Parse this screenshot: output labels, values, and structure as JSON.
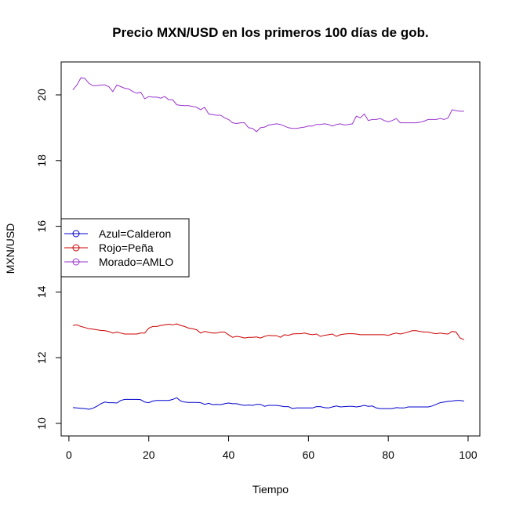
{
  "chart_data": {
    "type": "line",
    "title": "Precio MXN/USD en los primeros 100 días de gob.",
    "xlabel": "Tiempo",
    "ylabel": "MXN/USD",
    "xlim": [
      1,
      100
    ],
    "ylim": [
      10,
      20.9
    ],
    "xticks": [
      0,
      20,
      40,
      60,
      80,
      100
    ],
    "yticks": [
      10,
      12,
      14,
      16,
      18,
      20
    ],
    "xtick_labels": [
      "0",
      "20",
      "40",
      "60",
      "80",
      "100"
    ],
    "ytick_labels": [
      "10",
      "12",
      "14",
      "16",
      "18",
      "20"
    ],
    "legend_position": "left",
    "grid": false,
    "series": [
      {
        "name": "Azul=Calderon",
        "color": "#0000cc",
        "x": [
          1,
          2,
          3,
          4,
          5,
          6,
          7,
          8,
          9,
          10,
          11,
          12,
          13,
          14,
          15,
          16,
          17,
          18,
          19,
          20,
          21,
          22,
          23,
          24,
          25,
          26,
          27,
          28,
          29,
          30,
          31,
          32,
          33,
          34,
          35,
          36,
          37,
          38,
          39,
          40,
          41,
          42,
          43,
          44,
          45,
          46,
          47,
          48,
          49,
          50,
          51,
          52,
          53,
          54,
          55,
          56,
          57,
          58,
          59,
          60,
          61,
          62,
          63,
          64,
          65,
          66,
          67,
          68,
          69,
          70,
          71,
          72,
          73,
          74,
          75,
          76,
          77,
          78,
          79,
          80,
          81,
          82,
          83,
          84,
          85,
          86,
          87,
          88,
          89,
          90,
          91,
          92,
          93,
          94,
          95,
          96,
          97,
          98,
          99
        ],
        "y": [
          10.48,
          10.47,
          10.46,
          10.45,
          10.43,
          10.46,
          10.52,
          10.6,
          10.65,
          10.63,
          10.63,
          10.62,
          10.7,
          10.73,
          10.73,
          10.73,
          10.73,
          10.72,
          10.65,
          10.63,
          10.68,
          10.7,
          10.7,
          10.7,
          10.7,
          10.73,
          10.78,
          10.68,
          10.65,
          10.64,
          10.64,
          10.64,
          10.63,
          10.58,
          10.61,
          10.57,
          10.58,
          10.57,
          10.6,
          10.62,
          10.6,
          10.6,
          10.57,
          10.55,
          10.56,
          10.55,
          10.58,
          10.58,
          10.52,
          10.55,
          10.55,
          10.55,
          10.53,
          10.51,
          10.51,
          10.45,
          10.47,
          10.47,
          10.47,
          10.47,
          10.47,
          10.51,
          10.51,
          10.48,
          10.47,
          10.5,
          10.53,
          10.5,
          10.51,
          10.52,
          10.52,
          10.5,
          10.52,
          10.55,
          10.52,
          10.53,
          10.47,
          10.45,
          10.45,
          10.45,
          10.45,
          10.48,
          10.47,
          10.47,
          10.5,
          10.5,
          10.5,
          10.5,
          10.5,
          10.5,
          10.53,
          10.58,
          10.63,
          10.65,
          10.67,
          10.68,
          10.7,
          10.7,
          10.68
        ]
      },
      {
        "name": "Rojo=Peña",
        "color": "#cc0000",
        "x": [
          1,
          2,
          3,
          4,
          5,
          6,
          7,
          8,
          9,
          10,
          11,
          12,
          13,
          14,
          15,
          16,
          17,
          18,
          19,
          20,
          21,
          22,
          23,
          24,
          25,
          26,
          27,
          28,
          29,
          30,
          31,
          32,
          33,
          34,
          35,
          36,
          37,
          38,
          39,
          40,
          41,
          42,
          43,
          44,
          45,
          46,
          47,
          48,
          49,
          50,
          51,
          52,
          53,
          54,
          55,
          56,
          57,
          58,
          59,
          60,
          61,
          62,
          63,
          64,
          65,
          66,
          67,
          68,
          69,
          70,
          71,
          72,
          73,
          74,
          75,
          76,
          77,
          78,
          79,
          80,
          81,
          82,
          83,
          84,
          85,
          86,
          87,
          88,
          89,
          90,
          91,
          92,
          93,
          94,
          95,
          96,
          97,
          98,
          99
        ],
        "y": [
          12.98,
          13.0,
          12.95,
          12.92,
          12.88,
          12.87,
          12.85,
          12.83,
          12.82,
          12.8,
          12.75,
          12.78,
          12.75,
          12.72,
          12.72,
          12.72,
          12.72,
          12.75,
          12.75,
          12.9,
          12.95,
          12.95,
          12.98,
          13.0,
          13.02,
          13.0,
          13.03,
          12.98,
          12.95,
          12.9,
          12.88,
          12.85,
          12.75,
          12.8,
          12.77,
          12.75,
          12.75,
          12.78,
          12.78,
          12.7,
          12.62,
          12.65,
          12.63,
          12.6,
          12.62,
          12.62,
          12.63,
          12.6,
          12.65,
          12.68,
          12.67,
          12.67,
          12.62,
          12.7,
          12.68,
          12.72,
          12.73,
          12.73,
          12.75,
          12.72,
          12.7,
          12.72,
          12.65,
          12.68,
          12.7,
          12.72,
          12.65,
          12.7,
          12.72,
          12.73,
          12.73,
          12.72,
          12.7,
          12.7,
          12.7,
          12.7,
          12.7,
          12.7,
          12.7,
          12.68,
          12.72,
          12.75,
          12.72,
          12.75,
          12.78,
          12.82,
          12.82,
          12.8,
          12.78,
          12.78,
          12.75,
          12.73,
          12.75,
          12.73,
          12.72,
          12.8,
          12.78,
          12.6,
          12.55
        ]
      },
      {
        "name": "Morado=AMLO",
        "color": "#9933cc",
        "x": [
          1,
          2,
          3,
          4,
          5,
          6,
          7,
          8,
          9,
          10,
          11,
          12,
          13,
          14,
          15,
          16,
          17,
          18,
          19,
          20,
          21,
          22,
          23,
          24,
          25,
          26,
          27,
          28,
          29,
          30,
          31,
          32,
          33,
          34,
          35,
          36,
          37,
          38,
          39,
          40,
          41,
          42,
          43,
          44,
          45,
          46,
          47,
          48,
          49,
          50,
          51,
          52,
          53,
          54,
          55,
          56,
          57,
          58,
          59,
          60,
          61,
          62,
          63,
          64,
          65,
          66,
          67,
          68,
          69,
          70,
          71,
          72,
          73,
          74,
          75,
          76,
          77,
          78,
          79,
          80,
          81,
          82,
          83,
          84,
          85,
          86,
          87,
          88,
          89,
          90,
          91,
          92,
          93,
          94,
          95,
          96,
          97,
          98,
          99
        ],
        "y": [
          20.15,
          20.3,
          20.52,
          20.5,
          20.35,
          20.28,
          20.28,
          20.3,
          20.3,
          20.25,
          20.1,
          20.3,
          20.25,
          20.2,
          20.18,
          20.1,
          20.05,
          20.08,
          19.88,
          19.95,
          19.93,
          19.93,
          19.9,
          19.95,
          19.85,
          19.85,
          19.7,
          19.68,
          19.67,
          19.67,
          19.65,
          19.62,
          19.55,
          19.62,
          19.42,
          19.4,
          19.38,
          19.38,
          19.3,
          19.25,
          19.15,
          19.13,
          19.15,
          19.15,
          19.0,
          18.98,
          18.88,
          19.0,
          19.02,
          19.08,
          19.1,
          19.12,
          19.1,
          19.05,
          19.0,
          18.98,
          18.98,
          19.0,
          19.02,
          19.05,
          19.05,
          19.1,
          19.1,
          19.12,
          19.1,
          19.05,
          19.1,
          19.12,
          19.08,
          19.1,
          19.12,
          19.35,
          19.3,
          19.42,
          19.22,
          19.25,
          19.25,
          19.28,
          19.22,
          19.18,
          19.22,
          19.28,
          19.15,
          19.15,
          19.15,
          19.15,
          19.15,
          19.17,
          19.2,
          19.25,
          19.25,
          19.25,
          19.28,
          19.25,
          19.3,
          19.55,
          19.52,
          19.5,
          19.5
        ]
      }
    ]
  }
}
